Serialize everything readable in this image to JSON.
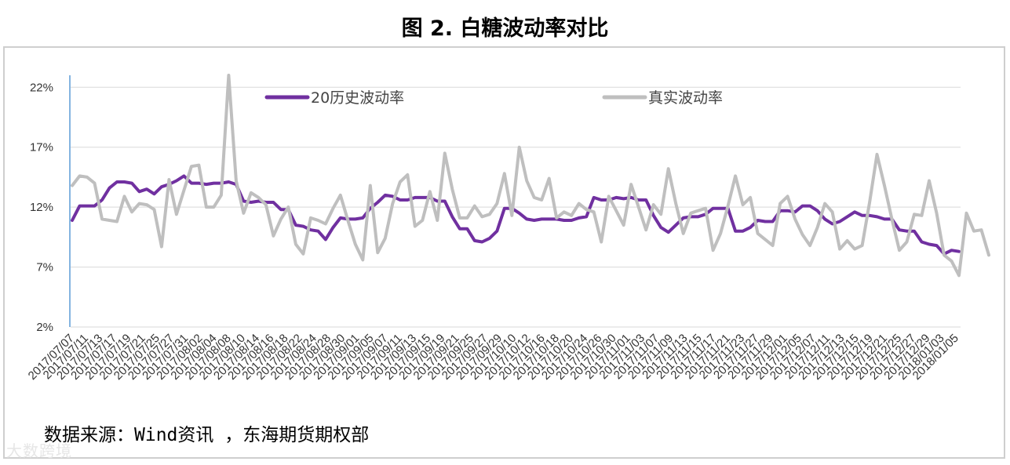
{
  "page_title": "图 2. 白糖波动率对比",
  "source_note": "数据来源：Wind资讯 ，东海期货期权部",
  "watermark": "大数跨境",
  "chart_data": {
    "type": "line",
    "title": "",
    "xlabel": "",
    "ylabel": "",
    "ylim": [
      2,
      23
    ],
    "y_ticks": [
      2,
      7,
      12,
      17,
      22
    ],
    "y_tick_labels": [
      "2%",
      "7%",
      "12%",
      "17%",
      "22%"
    ],
    "grid": "horizontal",
    "legend": "top-center",
    "x_tick_labels": [
      "2017/07/07",
      "2017/07/11",
      "2017/07/13",
      "2017/07/17",
      "2017/07/19",
      "2017/07/21",
      "2017/07/25",
      "2017/07/27",
      "2017/07/31",
      "2017/08/02",
      "2017/08/04",
      "2017/08/08",
      "2017/08/10",
      "2017/08/14",
      "2017/08/16",
      "2017/08/18",
      "2017/08/22",
      "2017/08/24",
      "2017/08/28",
      "2017/08/30",
      "2017/09/01",
      "2017/09/05",
      "2017/09/07",
      "2017/09/11",
      "2017/09/13",
      "2017/09/15",
      "2017/09/19",
      "2017/09/21",
      "2017/09/25",
      "2017/09/27",
      "2017/09/29",
      "2017/10/10",
      "2017/10/12",
      "2017/10/16",
      "2017/10/18",
      "2017/10/20",
      "2017/10/24",
      "2017/10/26",
      "2017/10/30",
      "2017/11/01",
      "2017/11/03",
      "2017/11/07",
      "2017/11/09",
      "2017/11/13",
      "2017/11/15",
      "2017/11/17",
      "2017/11/21",
      "2017/11/23",
      "2017/11/27",
      "2017/11/29",
      "2017/12/01",
      "2017/12/05",
      "2017/12/07",
      "2017/12/11",
      "2017/12/13",
      "2017/12/15",
      "2017/12/19",
      "2017/12/21",
      "2017/12/25",
      "2017/12/27",
      "2017/12/29",
      "2018/01/03",
      "2018/01/05"
    ],
    "series": [
      {
        "name": "20历史波动率",
        "color": "#7030a0",
        "values": [
          10.9,
          12.1,
          12.1,
          12.1,
          12.6,
          13.6,
          14.1,
          14.1,
          14.0,
          13.3,
          13.5,
          13.1,
          13.7,
          13.9,
          14.2,
          14.6,
          14.0,
          14.0,
          13.9,
          14.0,
          14.0,
          14.1,
          13.9,
          12.5,
          12.4,
          12.5,
          12.4,
          12.4,
          11.8,
          11.8,
          10.5,
          10.4,
          10.1,
          10.0,
          9.3,
          10.3,
          11.1,
          11.0,
          11.0,
          11.1,
          11.9,
          12.4,
          13.0,
          12.9,
          12.6,
          12.6,
          12.8,
          12.8,
          12.8,
          12.5,
          12.5,
          11.2,
          10.2,
          10.2,
          9.2,
          9.1,
          9.4,
          10.0,
          11.9,
          11.9,
          11.5,
          11.0,
          10.9,
          11.0,
          11.0,
          11.0,
          10.9,
          10.9,
          11.1,
          11.2,
          12.8,
          12.6,
          12.6,
          12.8,
          12.7,
          12.8,
          12.6,
          12.6,
          11.3,
          10.3,
          9.9,
          10.5,
          11.1,
          11.2,
          11.2,
          11.4,
          11.9,
          11.9,
          11.9,
          10.0,
          10.0,
          10.3,
          10.9,
          10.8,
          10.8,
          11.7,
          11.7,
          11.6,
          12.1,
          12.1,
          11.7,
          11.0,
          10.6,
          10.8,
          11.2,
          11.6,
          11.3,
          11.3,
          11.2,
          11.0,
          11.0,
          10.1,
          10.0,
          10.0,
          9.1,
          8.9,
          8.8,
          8.1,
          8.4,
          8.3
        ]
      },
      {
        "name": "真实波动率",
        "color": "#bfbfbf",
        "values": [
          13.8,
          14.6,
          14.5,
          14.0,
          11.0,
          10.9,
          10.8,
          12.9,
          11.6,
          12.3,
          12.2,
          11.8,
          8.7,
          14.3,
          11.4,
          13.4,
          15.4,
          15.5,
          12.0,
          12.0,
          13.0,
          23.0,
          14.2,
          11.5,
          13.2,
          12.8,
          12.2,
          9.6,
          11.0,
          12.0,
          8.9,
          8.1,
          11.1,
          10.9,
          10.6,
          11.9,
          13.0,
          10.9,
          8.9,
          7.6,
          13.8,
          8.2,
          9.4,
          12.3,
          14.1,
          14.7,
          10.4,
          10.9,
          13.3,
          10.9,
          16.5,
          13.5,
          11.1,
          11.1,
          12.1,
          11.2,
          11.4,
          12.3,
          14.8,
          11.3,
          17.0,
          14.2,
          12.8,
          12.6,
          14.4,
          11.1,
          11.6,
          11.3,
          12.3,
          11.8,
          11.6,
          9.1,
          12.9,
          11.7,
          10.5,
          13.9,
          12.0,
          10.1,
          12.2,
          11.4,
          15.2,
          12.3,
          9.8,
          11.5,
          11.7,
          11.9,
          8.4,
          9.8,
          12.1,
          14.6,
          12.2,
          12.8,
          9.8,
          9.3,
          8.8,
          12.3,
          12.9,
          11.0,
          9.7,
          8.8,
          10.3,
          12.3,
          11.6,
          8.5,
          9.2,
          8.5,
          8.8,
          12.4,
          16.4,
          13.8,
          11.0,
          8.4,
          9.1,
          11.4,
          11.3,
          14.2,
          11.5,
          8.0,
          7.5,
          6.3,
          11.5,
          10.0,
          10.1,
          8.0
        ]
      }
    ]
  }
}
